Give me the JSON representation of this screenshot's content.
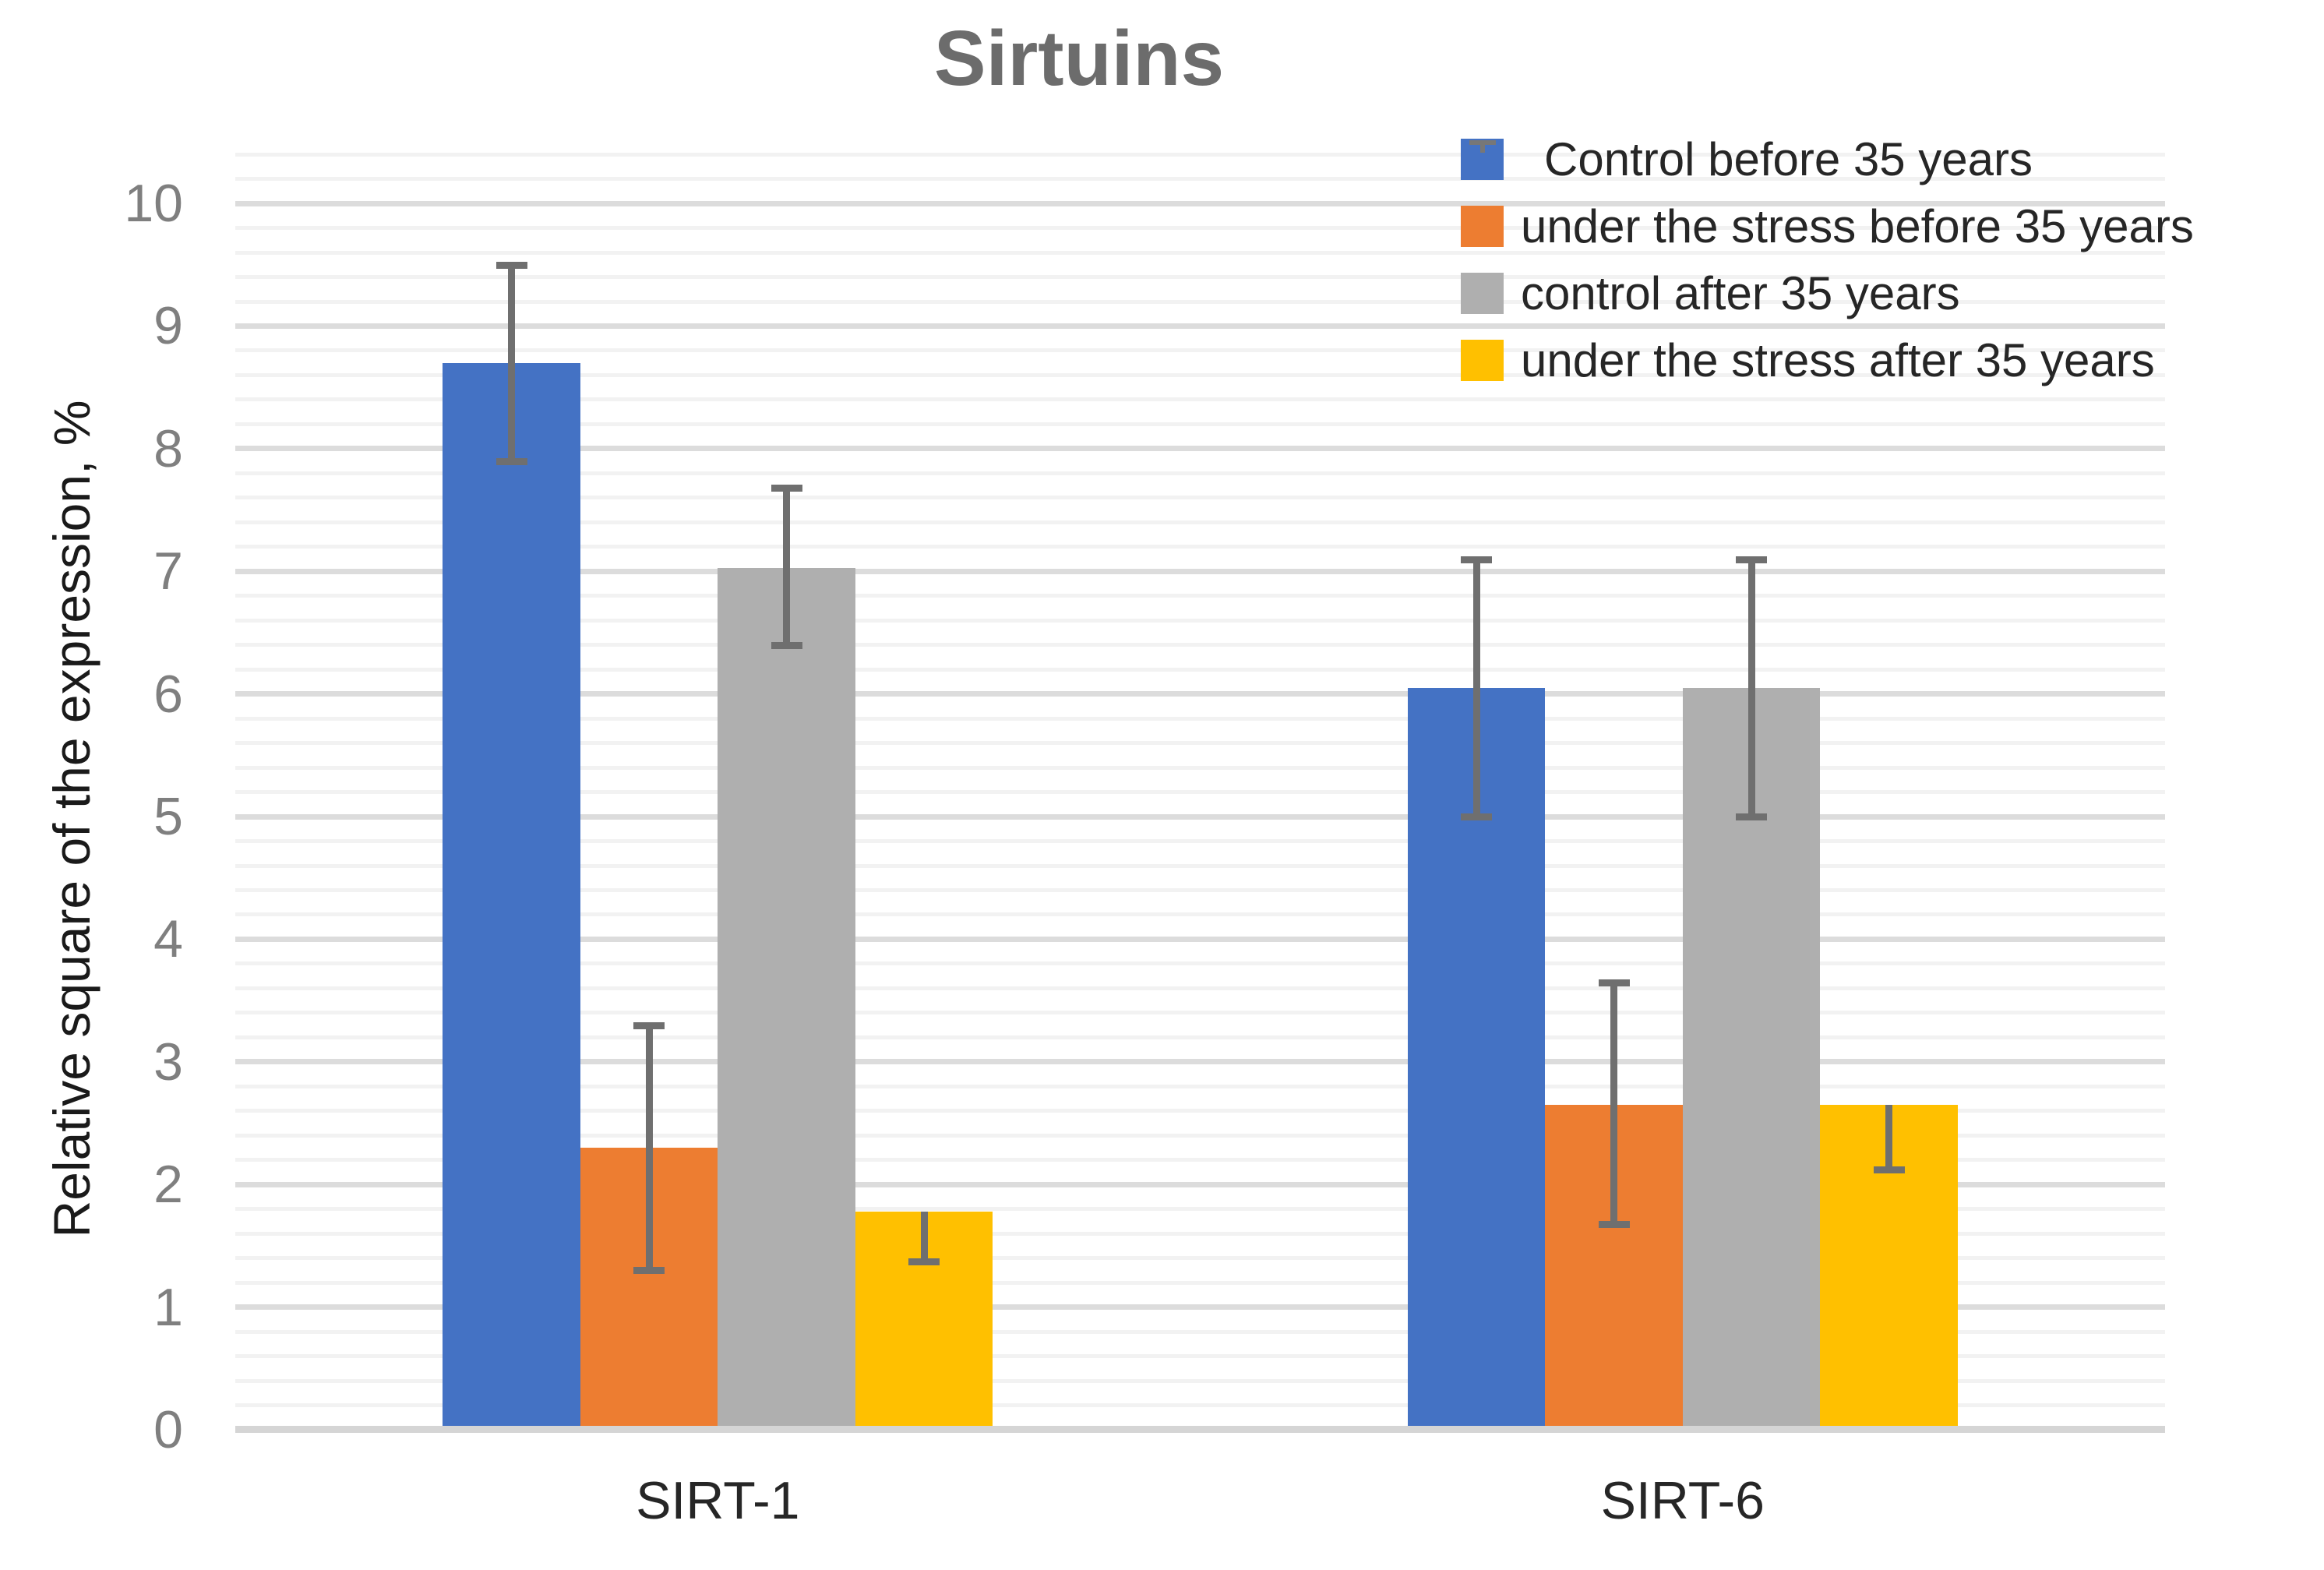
{
  "title": "Sirtuins",
  "chart_data": {
    "type": "bar",
    "title": "Sirtuins",
    "categories": [
      "SIRT-1",
      "SIRT-6"
    ],
    "series": [
      {
        "name": "Control before 35 years",
        "color": "#4472C4",
        "values": [
          8.7,
          6.05
        ],
        "error_plus": [
          0.8,
          1.05
        ],
        "error_minus": [
          0.8,
          1.05
        ],
        "legend_error_tick": true
      },
      {
        "name": "under the stress before 35 years",
        "color": "#ED7D31",
        "values": [
          2.3,
          2.65
        ],
        "error_plus": [
          1.0,
          1.0
        ],
        "error_minus": [
          1.0,
          0.97
        ],
        "legend_error_tick": false
      },
      {
        "name": "control after 35 years",
        "color": "#AFAFAF",
        "values": [
          7.03,
          6.05
        ],
        "error_plus": [
          0.65,
          1.05
        ],
        "error_minus": [
          0.63,
          1.05
        ],
        "legend_error_tick": false
      },
      {
        "name": "under the stress after 35 years",
        "color": "#FFC000",
        "values": [
          1.78,
          2.65
        ],
        "error_plus": [
          0,
          0
        ],
        "error_minus": [
          0.41,
          0.53
        ],
        "legend_error_tick": false
      }
    ],
    "ylabel": "Relative square of the expression, %",
    "xlabel": "",
    "ylim": [
      0,
      10.42
    ],
    "yticks": [
      0,
      1,
      2,
      3,
      4,
      5,
      6,
      7,
      8,
      9,
      10
    ],
    "minor_grid_step": 0.2,
    "major_grid_step": 1,
    "grid": true,
    "legend_position": "top-right",
    "error_bar_color": "#6F6F6F"
  },
  "colors": {
    "title": "#6C6C6C",
    "tick_labels": "#7F7F7F",
    "text": "#262626",
    "grid_minor": "#F2F2F2",
    "grid_major": "#DCDCDC",
    "baseline": "#D5D5D5",
    "error_bars": "#6F6F6F",
    "background": "#FFFFFF",
    "series_blue": "#4472C4",
    "series_orange": "#ED7D31",
    "series_gray": "#AFAFAF",
    "series_yellow": "#FFC000"
  }
}
